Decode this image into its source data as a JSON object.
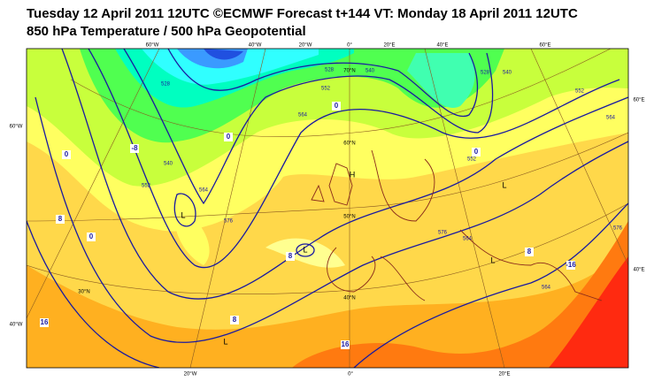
{
  "header": {
    "title": "Tuesday 12 April 2011 12UTC ©ECMWF Forecast t+144 VT: Monday 18 April 2011 12UTC",
    "subtitle": "850 hPa Temperature / 500 hPa Geopotential"
  },
  "map": {
    "longitude_labels_top": [
      "60°W",
      "40°W",
      "20°W",
      "0°",
      "20°E",
      "40°E",
      "60°E"
    ],
    "longitude_labels_bottom": [
      "20°W",
      "0°",
      "20°E"
    ],
    "latitude_labels_left": [
      "60°W",
      "40°W"
    ],
    "latitude_labels_right": [
      "60°E",
      "40°E"
    ],
    "latitude_labels_inner": [
      "70°N",
      "60°N",
      "50°N",
      "40°N",
      "30°N"
    ],
    "geopotential_labels": [
      "528",
      "540",
      "552",
      "564",
      "576",
      "528",
      "540",
      "552",
      "564",
      "576",
      "552",
      "564",
      "528",
      "540",
      "552",
      "564",
      "576",
      "564"
    ],
    "temperature_labels": [
      "0",
      "-8",
      "0",
      "8",
      "0",
      "8",
      "8",
      "16",
      "0",
      "0",
      "8",
      "16",
      "-16"
    ],
    "pressure_centres": [
      "L",
      "L",
      "H",
      "L",
      "L",
      "L"
    ]
  }
}
